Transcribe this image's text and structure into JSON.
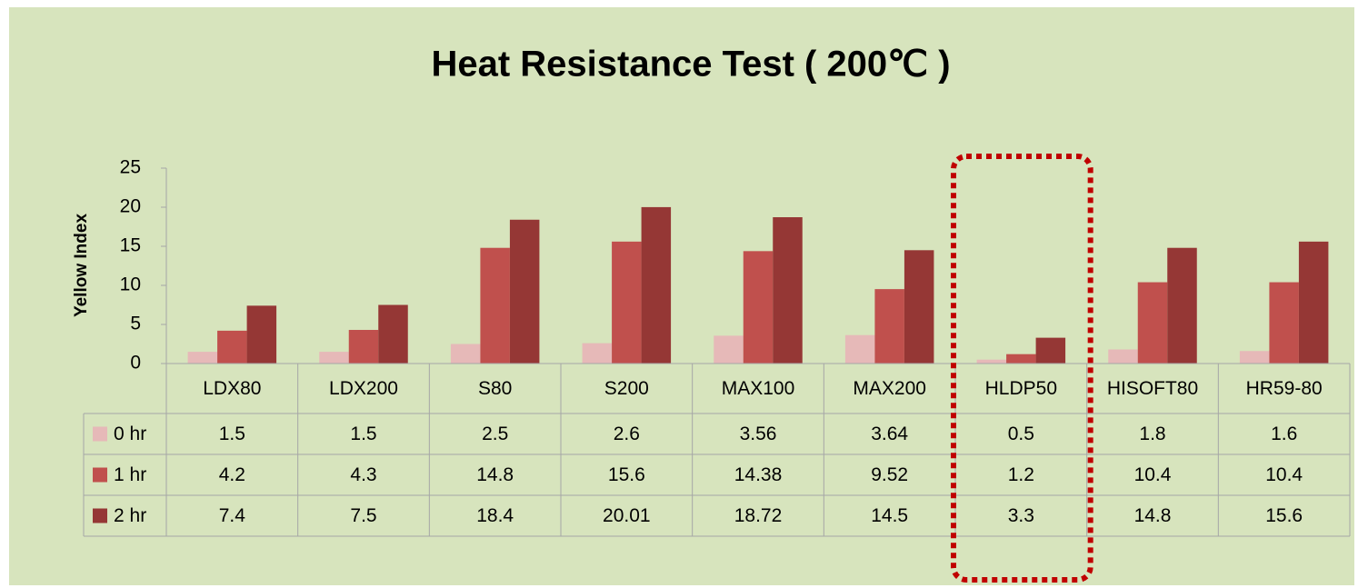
{
  "chart_data": {
    "type": "bar",
    "title": "Heat Resistance Test ( 200℃ )",
    "y_label": "Yellow Index",
    "categories": [
      "LDX80",
      "LDX200",
      "S80",
      "S200",
      "MAX100",
      "MAX200",
      "HLDP50",
      "HISOFT80",
      "HR59-80"
    ],
    "series": [
      {
        "name": "0 hr",
        "color": "#e6b9b8",
        "values": [
          1.5,
          1.5,
          2.5,
          2.6,
          3.56,
          3.64,
          0.5,
          1.8,
          1.6
        ]
      },
      {
        "name": "1 hr",
        "color": "#c0504d",
        "values": [
          4.2,
          4.3,
          14.8,
          15.6,
          14.38,
          9.52,
          1.2,
          10.4,
          10.4
        ]
      },
      {
        "name": "2 hr",
        "color": "#953735",
        "values": [
          7.4,
          7.5,
          18.4,
          20.01,
          18.72,
          14.5,
          3.3,
          14.8,
          15.6
        ]
      }
    ],
    "ylim": [
      0,
      25
    ],
    "yticks": [
      0,
      5,
      10,
      15,
      20,
      25
    ],
    "grid": false,
    "data_table": true
  }
}
